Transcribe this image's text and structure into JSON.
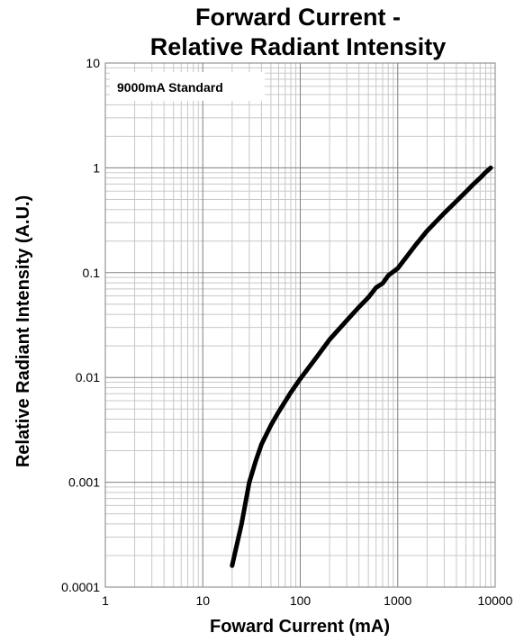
{
  "chart_data": {
    "type": "line",
    "title": [
      "Forward Current -",
      "Relative Radiant Intensity"
    ],
    "xlabel": "Foward Current (mA)",
    "ylabel": "Relative Radiant Intensity (A.U.)",
    "x_scale": "log",
    "y_scale": "log",
    "xlim": [
      1,
      10000
    ],
    "ylim": [
      0.0001,
      10
    ],
    "x_ticks": [
      "1",
      "10",
      "100",
      "1000",
      "10000"
    ],
    "y_ticks": [
      "0.0001",
      "0.001",
      "0.01",
      "0.1",
      "1",
      "10"
    ],
    "grid": true,
    "annotation": "9000mA Standard",
    "series": [
      {
        "x": [
          20,
          25,
          30,
          35,
          40,
          50,
          60,
          80,
          100,
          150,
          200,
          300,
          400,
          500,
          600,
          700,
          800,
          1000,
          1500,
          2000,
          3000,
          4000,
          5000,
          6000,
          7000,
          8000,
          9000
        ],
        "y": [
          0.00016,
          0.0004,
          0.001,
          0.0016,
          0.0023,
          0.0035,
          0.0047,
          0.0072,
          0.0097,
          0.016,
          0.023,
          0.035,
          0.047,
          0.058,
          0.072,
          0.079,
          0.094,
          0.11,
          0.18,
          0.25,
          0.37,
          0.48,
          0.59,
          0.7,
          0.8,
          0.91,
          1.0
        ],
        "color": "#000000"
      }
    ]
  }
}
